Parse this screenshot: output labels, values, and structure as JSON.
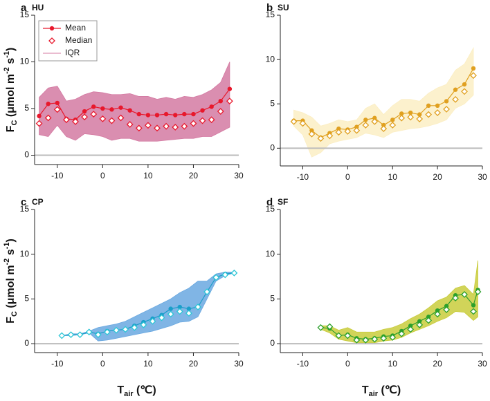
{
  "chart_data": [
    {
      "type": "line",
      "label": "a",
      "site": "HU",
      "x": [
        -14,
        -12,
        -10,
        -8,
        -6,
        -4,
        -2,
        0,
        2,
        4,
        6,
        8,
        10,
        12,
        14,
        16,
        18,
        20,
        22,
        24,
        26,
        28
      ],
      "series": [
        {
          "name": "Mean",
          "color": "#e8182c",
          "marker": "circle",
          "values": [
            4.2,
            5.5,
            5.6,
            3.9,
            3.8,
            4.7,
            5.2,
            5.0,
            4.9,
            5.1,
            4.8,
            4.4,
            4.3,
            4.3,
            4.4,
            4.3,
            4.4,
            4.4,
            4.8,
            5.2,
            5.8,
            7.1
          ]
        },
        {
          "name": "Median",
          "color": "#e8182c",
          "marker": "diamond",
          "values": [
            3.4,
            4.0,
            4.9,
            3.8,
            3.6,
            4.1,
            4.4,
            3.9,
            3.7,
            4.0,
            3.3,
            2.9,
            3.2,
            2.9,
            3.1,
            3.0,
            3.1,
            3.4,
            3.7,
            3.8,
            4.7,
            5.8
          ]
        }
      ],
      "band": {
        "name": "IQR",
        "color": "#d47aa2",
        "lower": [
          2.2,
          2.0,
          3.2,
          2.0,
          1.6,
          2.3,
          2.2,
          2.0,
          1.6,
          1.8,
          1.8,
          1.5,
          1.5,
          1.5,
          1.6,
          1.7,
          1.8,
          1.8,
          2.0,
          2.0,
          2.5,
          3.0
        ],
        "upper": [
          6.2,
          7.2,
          7.4,
          5.8,
          6.0,
          6.5,
          6.8,
          6.7,
          6.5,
          6.5,
          6.6,
          6.3,
          6.3,
          6.0,
          6.2,
          6.0,
          6.3,
          6.2,
          6.5,
          7.0,
          7.8,
          10.0
        ]
      },
      "reference_line": 0,
      "legend": "upper left",
      "xlim": [
        -15,
        30
      ],
      "xticks": [
        -10,
        0,
        10,
        20,
        30
      ],
      "ylim": [
        -1,
        15
      ],
      "yticks": [
        0,
        5,
        10,
        15
      ],
      "ylabel": [
        "F",
        "C",
        " (μmol m",
        "-2",
        " s",
        "-1",
        ")"
      ]
    },
    {
      "type": "line",
      "label": "b",
      "site": "SU",
      "x": [
        -12,
        -10,
        -8,
        -6,
        -4,
        -2,
        0,
        2,
        4,
        6,
        8,
        10,
        12,
        14,
        16,
        18,
        20,
        22,
        24,
        26,
        28
      ],
      "series": [
        {
          "color": "#e0a020",
          "marker": "circle",
          "values": [
            3.1,
            3.1,
            2.0,
            1.2,
            1.7,
            2.2,
            2.1,
            2.4,
            3.2,
            3.4,
            2.6,
            3.2,
            3.9,
            4.0,
            3.8,
            4.8,
            4.8,
            5.3,
            6.6,
            7.2,
            9.0
          ]
        },
        {
          "color": "#e0a020",
          "marker": "diamond",
          "values": [
            3.0,
            2.8,
            1.6,
            1.1,
            1.4,
            1.8,
            1.9,
            2.0,
            2.6,
            3.0,
            2.2,
            2.6,
            3.4,
            3.5,
            3.3,
            3.8,
            4.0,
            4.4,
            5.5,
            6.4,
            8.2
          ]
        }
      ],
      "band": {
        "color": "#fbeec4",
        "lower": [
          2.5,
          1.5,
          -1.0,
          -0.5,
          0.5,
          0.8,
          1.0,
          1.2,
          1.7,
          1.5,
          1.2,
          1.8,
          2.0,
          2.2,
          2.3,
          2.5,
          2.8,
          3.2,
          4.5,
          5.0,
          6.0
        ],
        "upper": [
          4.3,
          4.0,
          3.5,
          2.5,
          2.8,
          3.2,
          3.0,
          3.2,
          4.5,
          5.0,
          3.8,
          4.8,
          5.5,
          5.5,
          5.3,
          6.2,
          6.8,
          7.2,
          8.8,
          9.5,
          11.3
        ]
      },
      "reference_line": 0,
      "xlim": [
        -15,
        30
      ],
      "xticks": [
        -10,
        0,
        10,
        20,
        30
      ],
      "ylim": [
        -2,
        15
      ],
      "yticks": [
        0,
        5,
        10,
        15
      ]
    },
    {
      "type": "line",
      "label": "c",
      "site": "CP",
      "x": [
        -9,
        -7,
        -5,
        -3,
        -1,
        1,
        3,
        5,
        7,
        9,
        11,
        13,
        15,
        17,
        19,
        21,
        23,
        25,
        27,
        29
      ],
      "series": [
        {
          "color": "#1a9ec9",
          "marker": "circle",
          "values": [
            0.9,
            1.0,
            1.0,
            1.3,
            1.1,
            1.4,
            1.5,
            1.6,
            2.0,
            2.4,
            2.8,
            3.2,
            3.9,
            4.1,
            3.9,
            4.1,
            5.8,
            7.4,
            7.8,
            7.9
          ]
        },
        {
          "color": "#2cc6d6",
          "marker": "diamond",
          "values": [
            0.9,
            1.0,
            1.0,
            1.3,
            1.0,
            1.3,
            1.5,
            1.6,
            1.8,
            2.1,
            2.5,
            2.9,
            3.3,
            3.6,
            3.4,
            4.1,
            5.8,
            7.4,
            7.7,
            7.9
          ]
        }
      ],
      "band": {
        "color": "#6aa8e0",
        "lower": [
          0.9,
          0.9,
          1.0,
          1.2,
          0.3,
          0.4,
          0.6,
          0.8,
          1.0,
          1.2,
          1.4,
          1.7,
          2.0,
          2.4,
          2.5,
          3.0,
          5.0,
          7.0,
          7.6,
          7.9
        ],
        "upper": [
          0.9,
          1.1,
          1.1,
          1.4,
          1.8,
          2.0,
          2.2,
          2.5,
          3.0,
          3.5,
          4.0,
          4.5,
          5.0,
          5.7,
          6.2,
          7.0,
          7.0,
          7.8,
          8.0,
          8.0
        ]
      },
      "reference_line": 0,
      "xlim": [
        -15,
        30
      ],
      "xticks": [
        -10,
        0,
        10,
        20,
        30
      ],
      "ylim": [
        -1,
        15
      ],
      "yticks": [
        0,
        5,
        10,
        15
      ],
      "ylabel": [
        "F",
        "C",
        " (μmol m",
        "-2",
        " s",
        "-1",
        ")"
      ],
      "xlabel": [
        "T",
        "air",
        "  (℃)"
      ]
    },
    {
      "type": "line",
      "label": "d",
      "site": "SF",
      "x": [
        -6,
        -4,
        -2,
        0,
        2,
        4,
        6,
        8,
        10,
        12,
        14,
        16,
        18,
        20,
        22,
        24,
        26,
        28,
        29
      ],
      "series": [
        {
          "color": "#2ca02c",
          "marker": "circle",
          "values": [
            1.8,
            1.7,
            0.9,
            1.0,
            0.6,
            0.5,
            0.6,
            0.8,
            0.9,
            1.4,
            2.0,
            2.5,
            3.0,
            3.7,
            4.2,
            5.4,
            5.5,
            4.3,
            6.0
          ]
        },
        {
          "color": "#2ca02c",
          "marker": "diamond",
          "values": [
            1.8,
            1.9,
            0.9,
            0.9,
            0.4,
            0.4,
            0.5,
            0.6,
            0.7,
            1.1,
            1.6,
            2.1,
            2.6,
            3.3,
            3.8,
            5.1,
            5.5,
            3.6,
            5.8
          ]
        }
      ],
      "band": {
        "color": "#c9cc3c",
        "lower": [
          1.6,
          1.2,
          0.5,
          0.3,
          0.1,
          0.1,
          0.1,
          0.3,
          0.4,
          0.7,
          1.2,
          1.6,
          2.0,
          2.5,
          2.9,
          3.6,
          3.5,
          2.6,
          3.0
        ],
        "upper": [
          2.0,
          2.0,
          1.5,
          1.8,
          1.3,
          1.3,
          1.3,
          1.6,
          1.8,
          2.2,
          2.8,
          3.3,
          4.0,
          4.8,
          5.2,
          6.2,
          6.5,
          5.5,
          9.3
        ]
      },
      "reference_line": 0,
      "xlim": [
        -15,
        30
      ],
      "xticks": [
        -10,
        0,
        10,
        20,
        30
      ],
      "ylim": [
        -1,
        15
      ],
      "yticks": [
        0,
        5,
        10,
        15
      ],
      "xlabel": [
        "T",
        "air",
        "  (℃)"
      ]
    }
  ]
}
